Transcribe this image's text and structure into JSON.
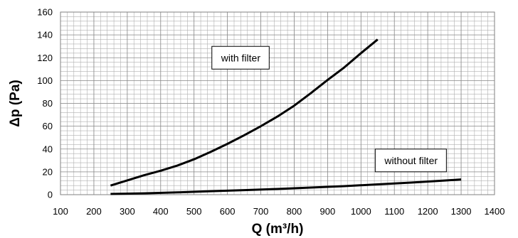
{
  "chart_data": {
    "type": "line",
    "title": "",
    "xlabel": "Q (m³/h)",
    "ylabel": "Δp (Pa)",
    "xlim": [
      100,
      1400
    ],
    "ylim": [
      0,
      160
    ],
    "x_ticks": [
      100,
      200,
      300,
      400,
      500,
      600,
      700,
      800,
      900,
      1000,
      1100,
      1200,
      1300,
      1400
    ],
    "y_ticks": [
      0,
      20,
      40,
      60,
      80,
      100,
      120,
      140,
      160
    ],
    "grid": true,
    "legend": "none",
    "series": [
      {
        "x": [
          250,
          300,
          350,
          400,
          450,
          500,
          550,
          600,
          650,
          700,
          750,
          800,
          850,
          900,
          950,
          1000,
          1050
        ],
        "y": [
          8,
          12.5,
          17,
          21,
          25.5,
          31,
          37.5,
          44.5,
          52,
          60,
          68.5,
          78,
          89,
          100.5,
          111.5,
          124,
          136
        ]
      },
      {
        "x": [
          250,
          350,
          450,
          550,
          650,
          750,
          850,
          950,
          1050,
          1150,
          1250,
          1300
        ],
        "y": [
          0.6,
          1.2,
          2,
          3,
          4,
          5,
          6.2,
          7.5,
          9,
          10.6,
          12.4,
          13.3
        ]
      }
    ],
    "annotations": [
      {
        "text": "with filter",
        "x": 640,
        "y": 120
      },
      {
        "text": "without filter",
        "x": 1150,
        "y": 30
      }
    ]
  },
  "style": {
    "line_color": "#000000",
    "grid_color": "#b0b0b0",
    "frame_color": "#808080"
  }
}
